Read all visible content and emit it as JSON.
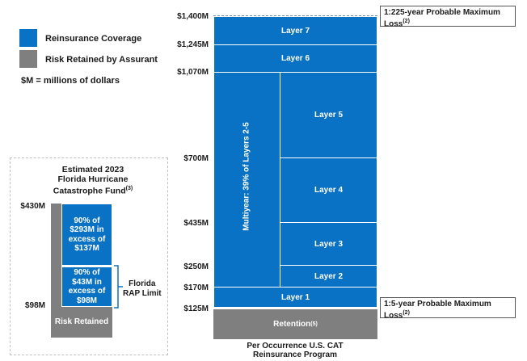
{
  "legend": {
    "items": [
      {
        "label": "Reinsurance Coverage",
        "color": "#0a72c4"
      },
      {
        "label": "Risk Retained by Assurant",
        "color": "#7f7f7f"
      }
    ],
    "note": "$M = millions of dollars"
  },
  "fund": {
    "title_line1": "Estimated 2023",
    "title_line2": "Florida Hurricane",
    "title_line3": "Catastrophe Fund",
    "title_sup": "(3)",
    "y_top": "$430M",
    "y_bottom": "$98M",
    "upper_block": [
      "90% of",
      "$293M in",
      "excess of",
      "$137M"
    ],
    "lower_block": [
      "90% of",
      "$43M in",
      "excess of",
      "$98M"
    ],
    "risk_retained": "Risk Retained",
    "rap_label_1": "Florida",
    "rap_label_2": "RAP Limit"
  },
  "program": {
    "y_labels": [
      "$1,400M",
      "$1,245M",
      "$1,070M",
      "$700M",
      "$435M",
      "$250M",
      "$170M",
      "$125M"
    ],
    "layers": {
      "layer7": "Layer 7",
      "layer6": "Layer 6",
      "layer5": "Layer 5",
      "layer4": "Layer 4",
      "layer3": "Layer 3",
      "layer2": "Layer 2",
      "layer1": "Layer 1"
    },
    "multiyear": "Multiyear: 39% of Layers 2-5",
    "retention": "Retention",
    "retention_sup": "(5)",
    "caption_line1": "Per Occurrence U.S. CAT",
    "caption_line2": "Reinsurance Program",
    "callout_top_1": "1:225-year Probable Maximum",
    "callout_top_2": "Loss",
    "callout_top_sup": "(2)",
    "callout_bottom_1": "1:5-year Probable Maximum",
    "callout_bottom_2": "Loss",
    "callout_bottom_sup": "(2)"
  }
}
